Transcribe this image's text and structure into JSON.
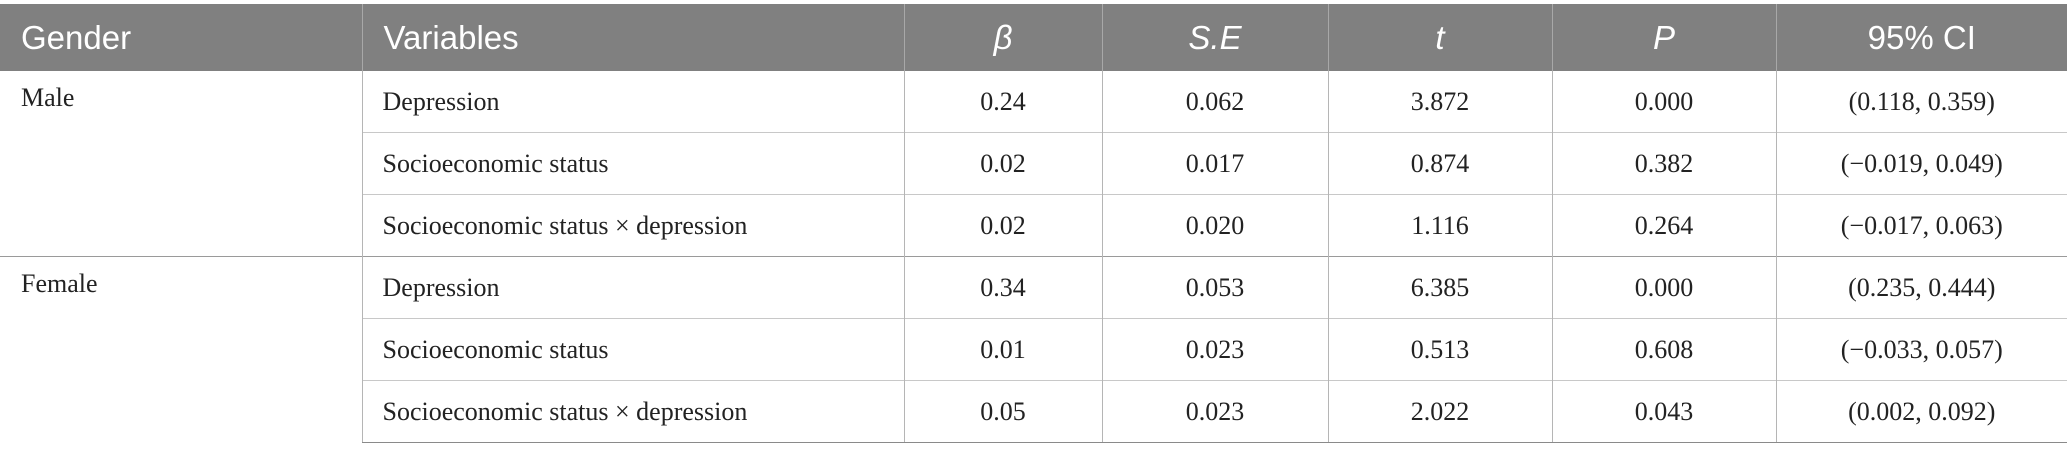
{
  "table": {
    "headers": {
      "gender": "Gender",
      "variables": "Variables",
      "beta": "β",
      "se": "S.E",
      "t": "t",
      "p": "P",
      "ci": "95% CI"
    },
    "groups": [
      {
        "gender": "Male",
        "rows": [
          {
            "variable": "Depression",
            "beta": "0.24",
            "se": "0.062",
            "t": "3.872",
            "p": "0.000",
            "ci": "(0.118, 0.359)"
          },
          {
            "variable": "Socioeconomic status",
            "beta": "0.02",
            "se": "0.017",
            "t": "0.874",
            "p": "0.382",
            "ci": "(−0.019, 0.049)"
          },
          {
            "variable": "Socioeconomic status × depression",
            "beta": "0.02",
            "se": "0.020",
            "t": "1.116",
            "p": "0.264",
            "ci": "(−0.017, 0.063)"
          }
        ]
      },
      {
        "gender": "Female",
        "rows": [
          {
            "variable": "Depression",
            "beta": "0.34",
            "se": "0.053",
            "t": "6.385",
            "p": "0.000",
            "ci": "(0.235, 0.444)"
          },
          {
            "variable": "Socioeconomic status",
            "beta": "0.01",
            "se": "0.023",
            "t": "0.513",
            "p": "0.608",
            "ci": "(−0.033, 0.057)"
          },
          {
            "variable": "Socioeconomic status × depression",
            "beta": "0.05",
            "se": "0.023",
            "t": "2.022",
            "p": "0.043",
            "ci": "(0.002, 0.092)"
          }
        ]
      }
    ]
  }
}
